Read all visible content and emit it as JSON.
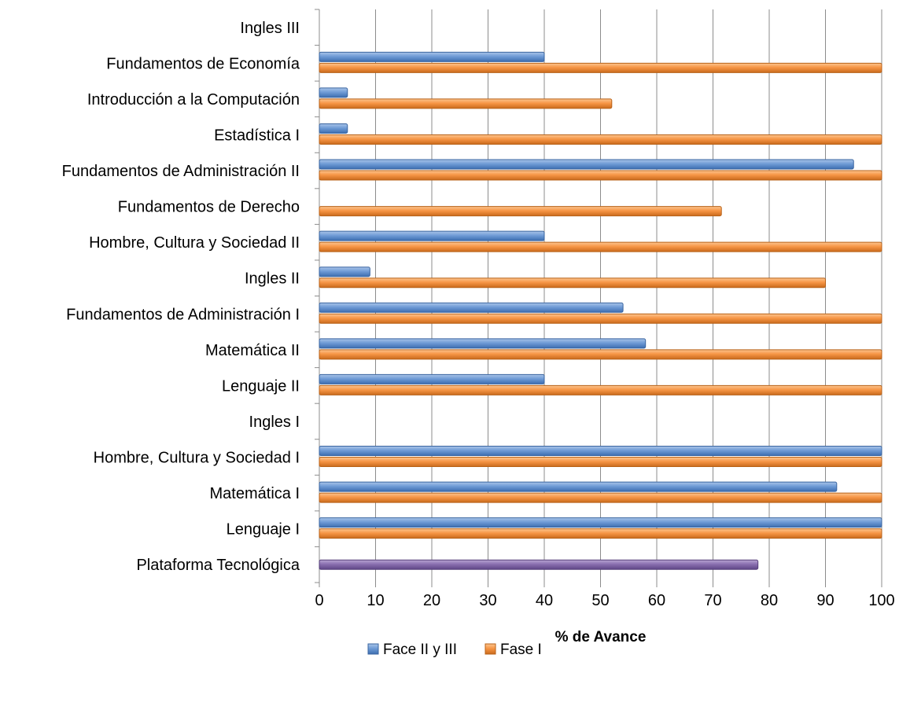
{
  "chart_data": {
    "type": "bar",
    "orientation": "horizontal",
    "xlabel": "% de Avance",
    "xlim": [
      0,
      100
    ],
    "xticks": [
      0,
      10,
      20,
      30,
      40,
      50,
      60,
      70,
      80,
      90,
      100
    ],
    "grid": "vertical",
    "legend_position": "bottom",
    "categories": [
      "Plataforma Tecnológica",
      "Lenguaje I",
      "Matemática I",
      "Hombre, Cultura y Sociedad I",
      "Ingles I",
      "Lenguaje II",
      "Matemática II",
      "Fundamentos de Administración I",
      "Ingles II",
      "Hombre, Cultura y Sociedad II",
      "Fundamentos de Derecho",
      "Fundamentos de Administración II",
      "Estadística I",
      "Introducción a la Computación",
      "Fundamentos de Economía",
      "Ingles III"
    ],
    "series": [
      {
        "name": "Face II y III",
        "color": "#4F81BD",
        "values": [
          null,
          100,
          92,
          100,
          null,
          40,
          58,
          54,
          9,
          40,
          null,
          95,
          5,
          5,
          40,
          null
        ]
      },
      {
        "name": "Fase I",
        "color": "#F79646",
        "values": [
          null,
          100,
          100,
          100,
          null,
          100,
          100,
          100,
          90,
          100,
          71.5,
          100,
          100,
          52,
          100,
          null
        ]
      }
    ],
    "extra_bars": [
      {
        "category": "Plataforma Tecnológica",
        "value": 78,
        "color": "#8064A2"
      }
    ]
  }
}
